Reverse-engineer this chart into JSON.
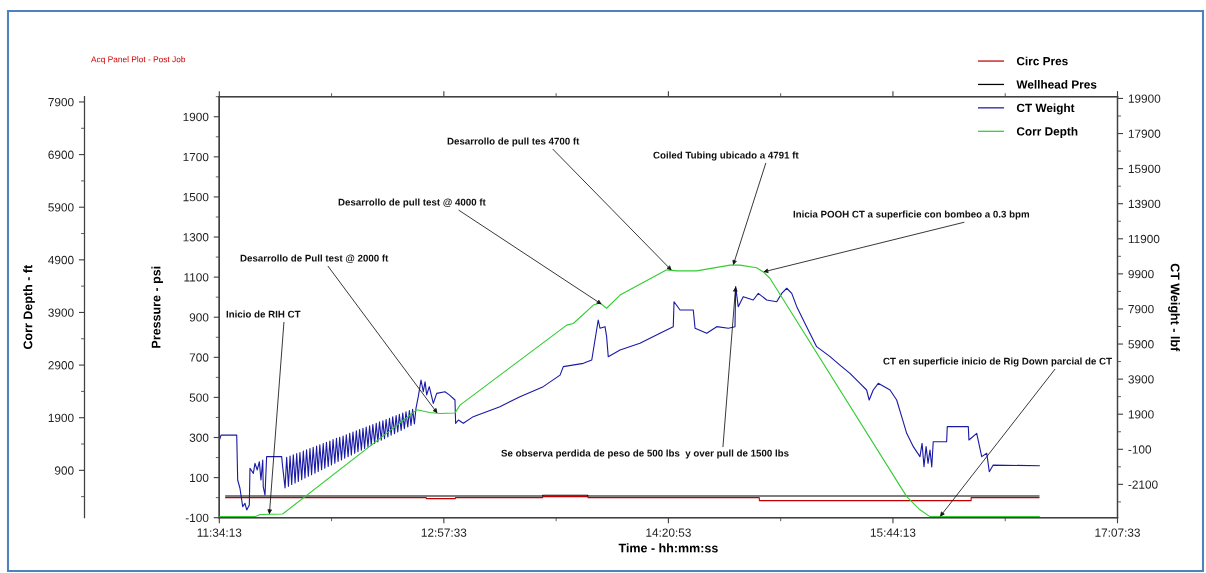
{
  "chart_data": {
    "type": "line",
    "subtitle": "Acq Panel Plot - Post Job",
    "xlabel": "Time - hh:mm:ss",
    "ylabel": "Corr Depth - ft",
    "y2label": "CT Weight - lbf",
    "y3label": "Pressure - psi",
    "xlim": [
      11.5702778,
      17.1258333
    ],
    "xticks": [
      {
        "value": 11.5702778,
        "label": "11:34:13"
      },
      {
        "value": 12.9591667,
        "label": "12:57:33"
      },
      {
        "value": 14.3480556,
        "label": "14:20:53"
      },
      {
        "value": 15.7369444,
        "label": "15:44:13"
      },
      {
        "value": 17.1258333,
        "label": "17:07:33"
      }
    ],
    "ylim": [
      0,
      8000
    ],
    "yticks": [
      900,
      1900,
      2900,
      3900,
      4900,
      5900,
      6900,
      7900
    ],
    "y2lim": [
      -4000,
      20000
    ],
    "y2ticks": [
      -2100,
      -100,
      1900,
      3900,
      5900,
      7900,
      9900,
      11900,
      13900,
      15900,
      17900,
      19900
    ],
    "y3lim": [
      -100,
      2000
    ],
    "y3ticks": [
      -100,
      100,
      300,
      500,
      700,
      900,
      1100,
      1300,
      1500,
      1700,
      1900
    ],
    "legend": "top right",
    "series": [
      {
        "name": "Circ Pres",
        "color": "#c00000",
        "axis": "y3",
        "x": [
          11.61,
          12.85,
          12.851,
          13.03,
          13.031,
          13.57,
          13.571,
          13.85,
          13.851,
          14.91,
          14.911,
          16.22,
          16.221,
          16.64
        ],
        "values": [
          0,
          0,
          -5,
          -5,
          0,
          0,
          5,
          5,
          0,
          0,
          -15,
          -15,
          0,
          0
        ]
      },
      {
        "name": "Wellhead Pres",
        "color": "#000000",
        "axis": "y3",
        "x": [
          11.61,
          13.57,
          13.571,
          13.85,
          13.851,
          16.64
        ],
        "values": [
          8,
          8,
          12,
          12,
          8,
          8
        ]
      },
      {
        "name": "CT Weight",
        "color": "#1a1aa6",
        "axis": "y2",
        "x": [
          11.571,
          11.581,
          11.678,
          11.684,
          11.698,
          11.715,
          11.729,
          11.74,
          11.756,
          11.76,
          11.781,
          11.791,
          11.805,
          11.818,
          11.828,
          11.839,
          11.842,
          11.853,
          11.863,
          11.956,
          11.962,
          11.977,
          11.987,
          11.998,
          12.008,
          12.018,
          12.028,
          12.039,
          12.049,
          12.059,
          12.069,
          12.08,
          12.09,
          12.1,
          12.11,
          12.121,
          12.131,
          12.141,
          12.151,
          12.162,
          12.172,
          12.182,
          12.192,
          12.203,
          12.213,
          12.223,
          12.233,
          12.244,
          12.254,
          12.264,
          12.274,
          12.285,
          12.295,
          12.305,
          12.315,
          12.326,
          12.336,
          12.346,
          12.356,
          12.367,
          12.377,
          12.387,
          12.397,
          12.408,
          12.418,
          12.428,
          12.438,
          12.449,
          12.459,
          12.469,
          12.479,
          12.49,
          12.5,
          12.51,
          12.52,
          12.531,
          12.541,
          12.551,
          12.561,
          12.572,
          12.582,
          12.592,
          12.602,
          12.613,
          12.623,
          12.633,
          12.643,
          12.654,
          12.664,
          12.674,
          12.684,
          12.695,
          12.705,
          12.715,
          12.725,
          12.736,
          12.746,
          12.756,
          12.766,
          12.777,
          12.787,
          12.801,
          12.818,
          12.832,
          12.843,
          12.853,
          12.869,
          12.894,
          12.915,
          12.966,
          12.993,
          13.028,
          13.032,
          13.049,
          13.08,
          13.141,
          13.306,
          13.43,
          13.574,
          13.678,
          13.698,
          13.822,
          13.874,
          13.914,
          13.925,
          13.956,
          13.966,
          13.976,
          14.049,
          14.172,
          14.296,
          14.378,
          14.383,
          14.42,
          14.502,
          14.513,
          14.585,
          14.647,
          14.719,
          14.76,
          14.764,
          14.78,
          14.811,
          14.873,
          14.904,
          14.956,
          15.018,
          15.049,
          15.08,
          15.111,
          15.142,
          15.203,
          15.265,
          15.348,
          15.409,
          15.471,
          15.533,
          15.574,
          15.59,
          15.615,
          15.646,
          15.719,
          15.76,
          15.791,
          15.822,
          15.863,
          15.904,
          15.917,
          15.929,
          15.942,
          15.954,
          15.966,
          15.977,
          15.986,
          16.069,
          16.073,
          16.203,
          16.207,
          16.255,
          16.286,
          16.317,
          16.333,
          16.357,
          16.642
        ],
        "values": [
          430,
          710,
          710,
          -1850,
          -2320,
          -3370,
          -3180,
          -3560,
          -3280,
          -1180,
          -1470,
          -900,
          -1280,
          -810,
          -1850,
          -710,
          -2230,
          -2710,
          -520,
          -520,
          -1090,
          -2300,
          -560,
          -2210,
          -490,
          -2110,
          -420,
          -2020,
          -350,
          -1930,
          -280,
          -1830,
          -200,
          -1740,
          -130,
          -1640,
          -60,
          -1550,
          10,
          -1460,
          90,
          -1360,
          160,
          -1270,
          230,
          -1180,
          300,
          -1080,
          370,
          -990,
          450,
          -900,
          520,
          -800,
          590,
          -710,
          660,
          -610,
          730,
          -520,
          810,
          -430,
          880,
          -330,
          950,
          -240,
          1020,
          -150,
          1100,
          -50,
          1170,
          40,
          1240,
          140,
          1310,
          230,
          1380,
          320,
          1460,
          420,
          1530,
          510,
          1600,
          600,
          1670,
          700,
          1750,
          790,
          1820,
          890,
          1890,
          980,
          1960,
          1070,
          2030,
          1170,
          2110,
          1260,
          2180,
          1350,
          2250,
          2900,
          3850,
          3180,
          3750,
          3000,
          3470,
          2520,
          3090,
          3180,
          3000,
          2710,
          1380,
          1570,
          1380,
          1760,
          2330,
          2900,
          3470,
          4130,
          4610,
          4800,
          4990,
          7270,
          6800,
          6890,
          6320,
          5180,
          5560,
          5940,
          6510,
          6890,
          8310,
          7840,
          7840,
          6800,
          6510,
          6890,
          6800,
          6890,
          9170,
          8030,
          8600,
          8410,
          8790,
          8410,
          8310,
          8790,
          9080,
          8790,
          8030,
          6890,
          5750,
          5180,
          4700,
          4230,
          3660,
          3280,
          2710,
          3280,
          3660,
          3280,
          2710,
          1760,
          810,
          50,
          -520,
          240,
          -1090,
          50,
          -900,
          -140,
          -1110,
          330,
          330,
          1190,
          1190,
          430,
          810,
          -520,
          -330,
          -1380,
          -1000,
          -1040
        ]
      },
      {
        "name": "Corr Depth",
        "color": "#33cc33",
        "x": [
          11.571,
          11.791,
          11.822,
          11.962,
          12.791,
          12.873,
          12.935,
          13.028,
          13.059,
          13.719,
          13.76,
          13.884,
          13.925,
          13.966,
          14.049,
          14.338,
          14.4,
          14.523,
          14.729,
          14.791,
          14.894,
          14.935,
          14.976,
          15.822,
          15.904,
          15.966,
          16.642
        ],
        "values": [
          20,
          20,
          60,
          70,
          2050,
          2000,
          1980,
          1990,
          2140,
          3660,
          3690,
          4040,
          4080,
          3980,
          4230,
          4710,
          4690,
          4690,
          4800,
          4800,
          4750,
          4670,
          4550,
          400,
          150,
          20,
          20
        ]
      }
    ],
    "annotations": [
      {
        "text": "Inicio de RIH CT",
        "x": 11.88,
        "y": 64
      },
      {
        "text": "Desarrollo de Pull test @ 2000 ft",
        "x": 12.919,
        "y": 1985
      },
      {
        "text": "Desarrollo de pull test @ 4000 ft",
        "x": 13.935,
        "y": 4056
      },
      {
        "text": "Desarrollo de pull tes 4700 ft",
        "x": 14.368,
        "y": 4700
      },
      {
        "text": "Coiled Tubing ubicado a 4791 ft",
        "x": 14.749,
        "y": 4800
      },
      {
        "text": "Inicia POOH CT a superficie con bombeo a 0.3 bpm",
        "x": 14.935,
        "y": 4670
      },
      {
        "text": "Se observa perdida de peso de 500 lbs  y over pull de 1500 lbs",
        "x": 14.764,
        "y": 4390
      },
      {
        "text": "CT en superficie inicio de Rig Down parcial de CT",
        "x": 16.028,
        "y": 20
      }
    ]
  }
}
